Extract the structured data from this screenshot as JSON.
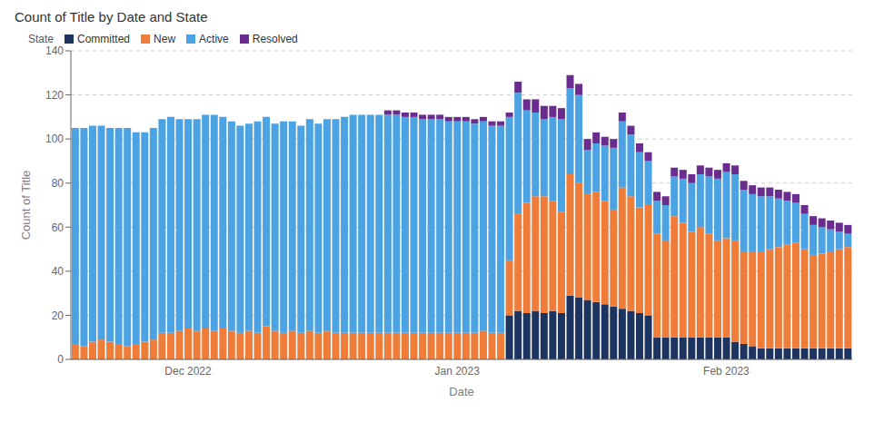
{
  "chart_data": {
    "type": "bar",
    "title": "Count of Title by Date and State",
    "xlabel": "Date",
    "ylabel": "Count of Title",
    "legend": "top",
    "legend_title": "State",
    "stacked": true,
    "grid": true,
    "ylim": [
      0,
      140
    ],
    "yticks": [
      0,
      20,
      40,
      60,
      80,
      100,
      120,
      140
    ],
    "categories": [
      null,
      null,
      null,
      null,
      null,
      null,
      null,
      null,
      null,
      null,
      null,
      null,
      null,
      "Dec 2022",
      null,
      null,
      null,
      null,
      null,
      null,
      null,
      null,
      null,
      null,
      null,
      null,
      null,
      null,
      null,
      null,
      null,
      null,
      null,
      null,
      null,
      null,
      null,
      null,
      null,
      null,
      null,
      null,
      null,
      null,
      "Jan 2023",
      null,
      null,
      null,
      null,
      null,
      null,
      null,
      null,
      null,
      null,
      null,
      null,
      null,
      null,
      null,
      null,
      null,
      null,
      null,
      null,
      null,
      null,
      null,
      null,
      null,
      null,
      null,
      null,
      null,
      null,
      "Feb 2023",
      null,
      null,
      null,
      null,
      null,
      null,
      null,
      null,
      null,
      null,
      null,
      null,
      null,
      null
    ],
    "series": [
      {
        "name": "Committed",
        "color": "#1D3461",
        "values": [
          0,
          0,
          0,
          0,
          0,
          0,
          0,
          0,
          0,
          0,
          0,
          0,
          0,
          0,
          0,
          0,
          0,
          0,
          0,
          0,
          0,
          0,
          0,
          0,
          0,
          0,
          0,
          0,
          0,
          0,
          0,
          0,
          0,
          0,
          0,
          0,
          0,
          0,
          0,
          0,
          0,
          0,
          0,
          0,
          0,
          0,
          0,
          0,
          0,
          0,
          20,
          22,
          21,
          22,
          21,
          22,
          21,
          29,
          28,
          27,
          26,
          25,
          24,
          23,
          22,
          21,
          20,
          10,
          10,
          10,
          10,
          10,
          10,
          10,
          10,
          10,
          8,
          7,
          6,
          5,
          5,
          5,
          5,
          5,
          5,
          5,
          5,
          5,
          5,
          5
        ]
      },
      {
        "name": "New",
        "color": "#F07C3A",
        "values": [
          7,
          6,
          8,
          9,
          8,
          7,
          6,
          7,
          8,
          9,
          12,
          12,
          13,
          14,
          13,
          14,
          13,
          14,
          13,
          12,
          13,
          12,
          15,
          13,
          12,
          13,
          12,
          13,
          12,
          13,
          12,
          12,
          12,
          12,
          12,
          12,
          12,
          12,
          12,
          12,
          12,
          12,
          12,
          12,
          12,
          12,
          12,
          13,
          12,
          12,
          25,
          44,
          50,
          52,
          53,
          50,
          46,
          55,
          52,
          48,
          50,
          47,
          44,
          55,
          52,
          48,
          50,
          47,
          44,
          55,
          52,
          48,
          50,
          47,
          44,
          45,
          46,
          42,
          43,
          44,
          45,
          46,
          47,
          48,
          45,
          42,
          43,
          44,
          45,
          46
        ]
      },
      {
        "name": "Active",
        "color": "#4BA3E3",
        "values": [
          98,
          99,
          98,
          97,
          97,
          98,
          99,
          96,
          95,
          96,
          97,
          98,
          96,
          95,
          96,
          97,
          98,
          96,
          95,
          94,
          94,
          96,
          95,
          94,
          96,
          95,
          94,
          96,
          95,
          96,
          97,
          98,
          99,
          99,
          99,
          99,
          99,
          99,
          98,
          98,
          97,
          97,
          97,
          96,
          96,
          96,
          95,
          95,
          94,
          94,
          65,
          55,
          42,
          38,
          35,
          38,
          42,
          39,
          40,
          20,
          22,
          25,
          28,
          30,
          28,
          25,
          20,
          15,
          16,
          18,
          20,
          22,
          24,
          26,
          28,
          30,
          30,
          28,
          26,
          25,
          24,
          22,
          20,
          18,
          16,
          14,
          12,
          10,
          8,
          6
        ]
      },
      {
        "name": "Resolved",
        "color": "#6B2C8F",
        "values": [
          0,
          0,
          0,
          0,
          0,
          0,
          0,
          0,
          0,
          0,
          0,
          0,
          0,
          0,
          0,
          0,
          0,
          0,
          0,
          0,
          0,
          0,
          0,
          0,
          0,
          0,
          0,
          0,
          0,
          0,
          0,
          0,
          0,
          0,
          0,
          0,
          2,
          2,
          2,
          2,
          2,
          2,
          2,
          2,
          2,
          2,
          2,
          2,
          2,
          2,
          2,
          5,
          5,
          6,
          6,
          5,
          5,
          6,
          5,
          5,
          5,
          4,
          4,
          4,
          4,
          4,
          4,
          4,
          4,
          4,
          4,
          4,
          4,
          4,
          4,
          4,
          4,
          4,
          4,
          4,
          4,
          4,
          4,
          4,
          4,
          4,
          4,
          4,
          4,
          4
        ]
      }
    ]
  }
}
